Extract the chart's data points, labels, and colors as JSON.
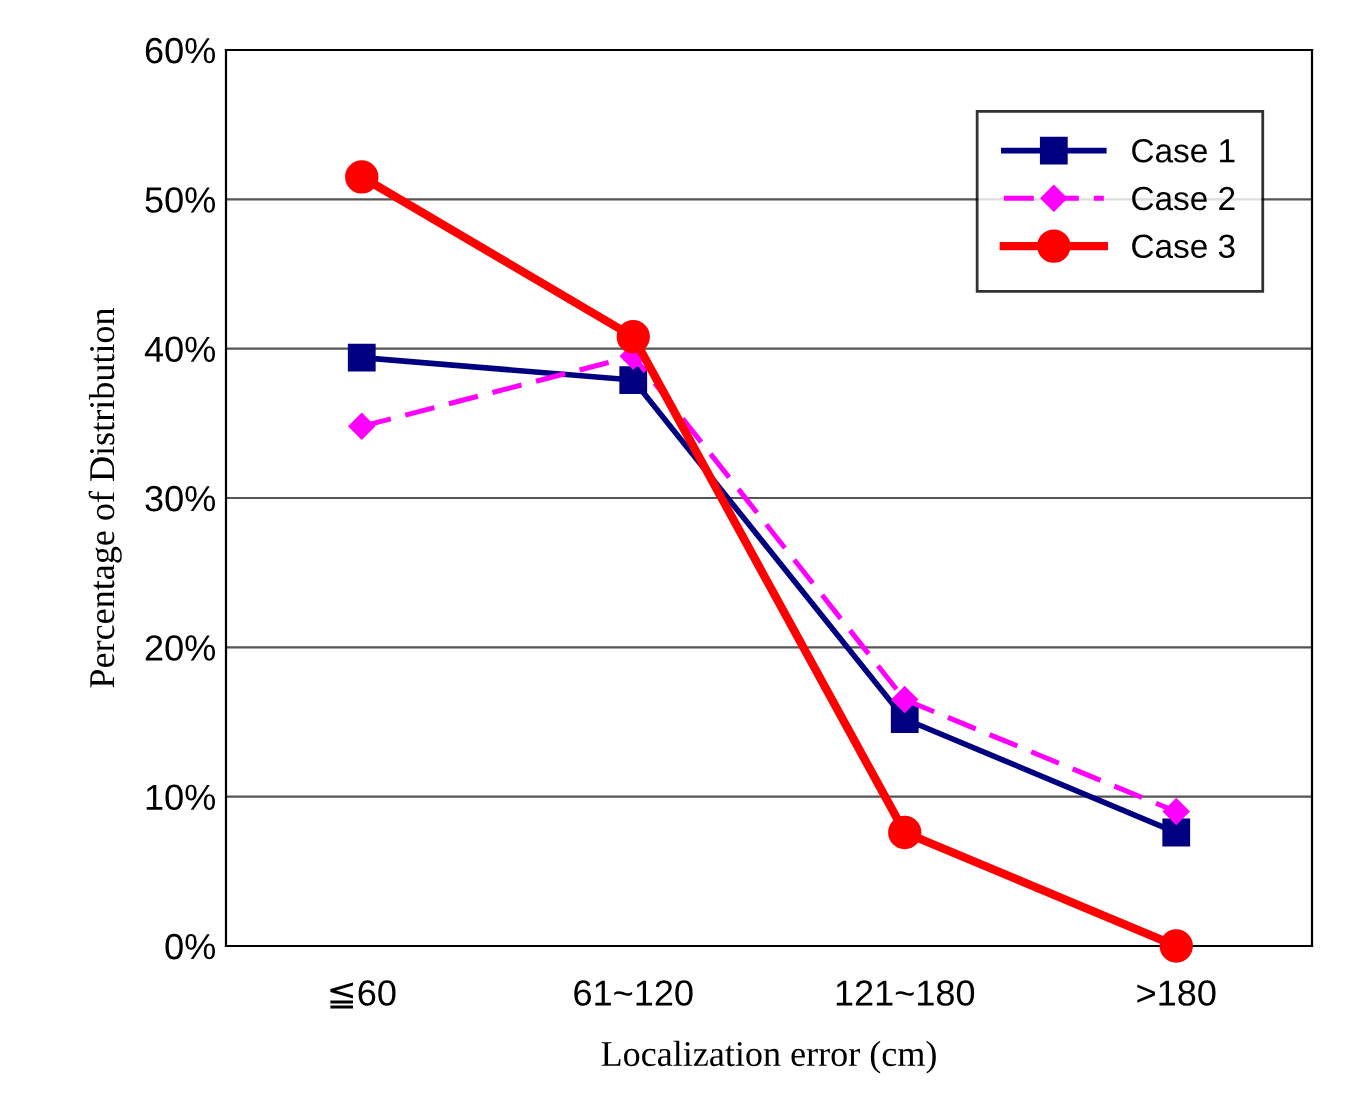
{
  "chart_data": {
    "type": "line",
    "xlabel": "Localization error (cm)",
    "ylabel": "Percentage of Distribution",
    "categories": [
      "≦60",
      "61~120",
      "121~180",
      ">180"
    ],
    "series": [
      {
        "name": "Case 1",
        "color": "#000080",
        "values": [
          39.4,
          37.9,
          15.2,
          7.6
        ],
        "marker": "square",
        "line_style": "solid"
      },
      {
        "name": "Case 2",
        "color": "#ff00ff",
        "values": [
          34.8,
          39.5,
          16.5,
          9.0
        ],
        "marker": "diamond",
        "line_style": "dashed"
      },
      {
        "name": "Case 3",
        "color": "#ff0000",
        "values": [
          51.5,
          40.8,
          7.6,
          0
        ],
        "marker": "circle",
        "line_style": "solid"
      }
    ],
    "ylim": [
      0,
      60
    ],
    "yticks": [
      {
        "value": 0,
        "label": "0%"
      },
      {
        "value": 10,
        "label": "10%"
      },
      {
        "value": 20,
        "label": "20%"
      },
      {
        "value": 30,
        "label": "30%"
      },
      {
        "value": 40,
        "label": "40%"
      },
      {
        "value": 50,
        "label": "50%"
      },
      {
        "value": 60,
        "label": "60%"
      }
    ],
    "grid": "y",
    "legend": "top right"
  }
}
